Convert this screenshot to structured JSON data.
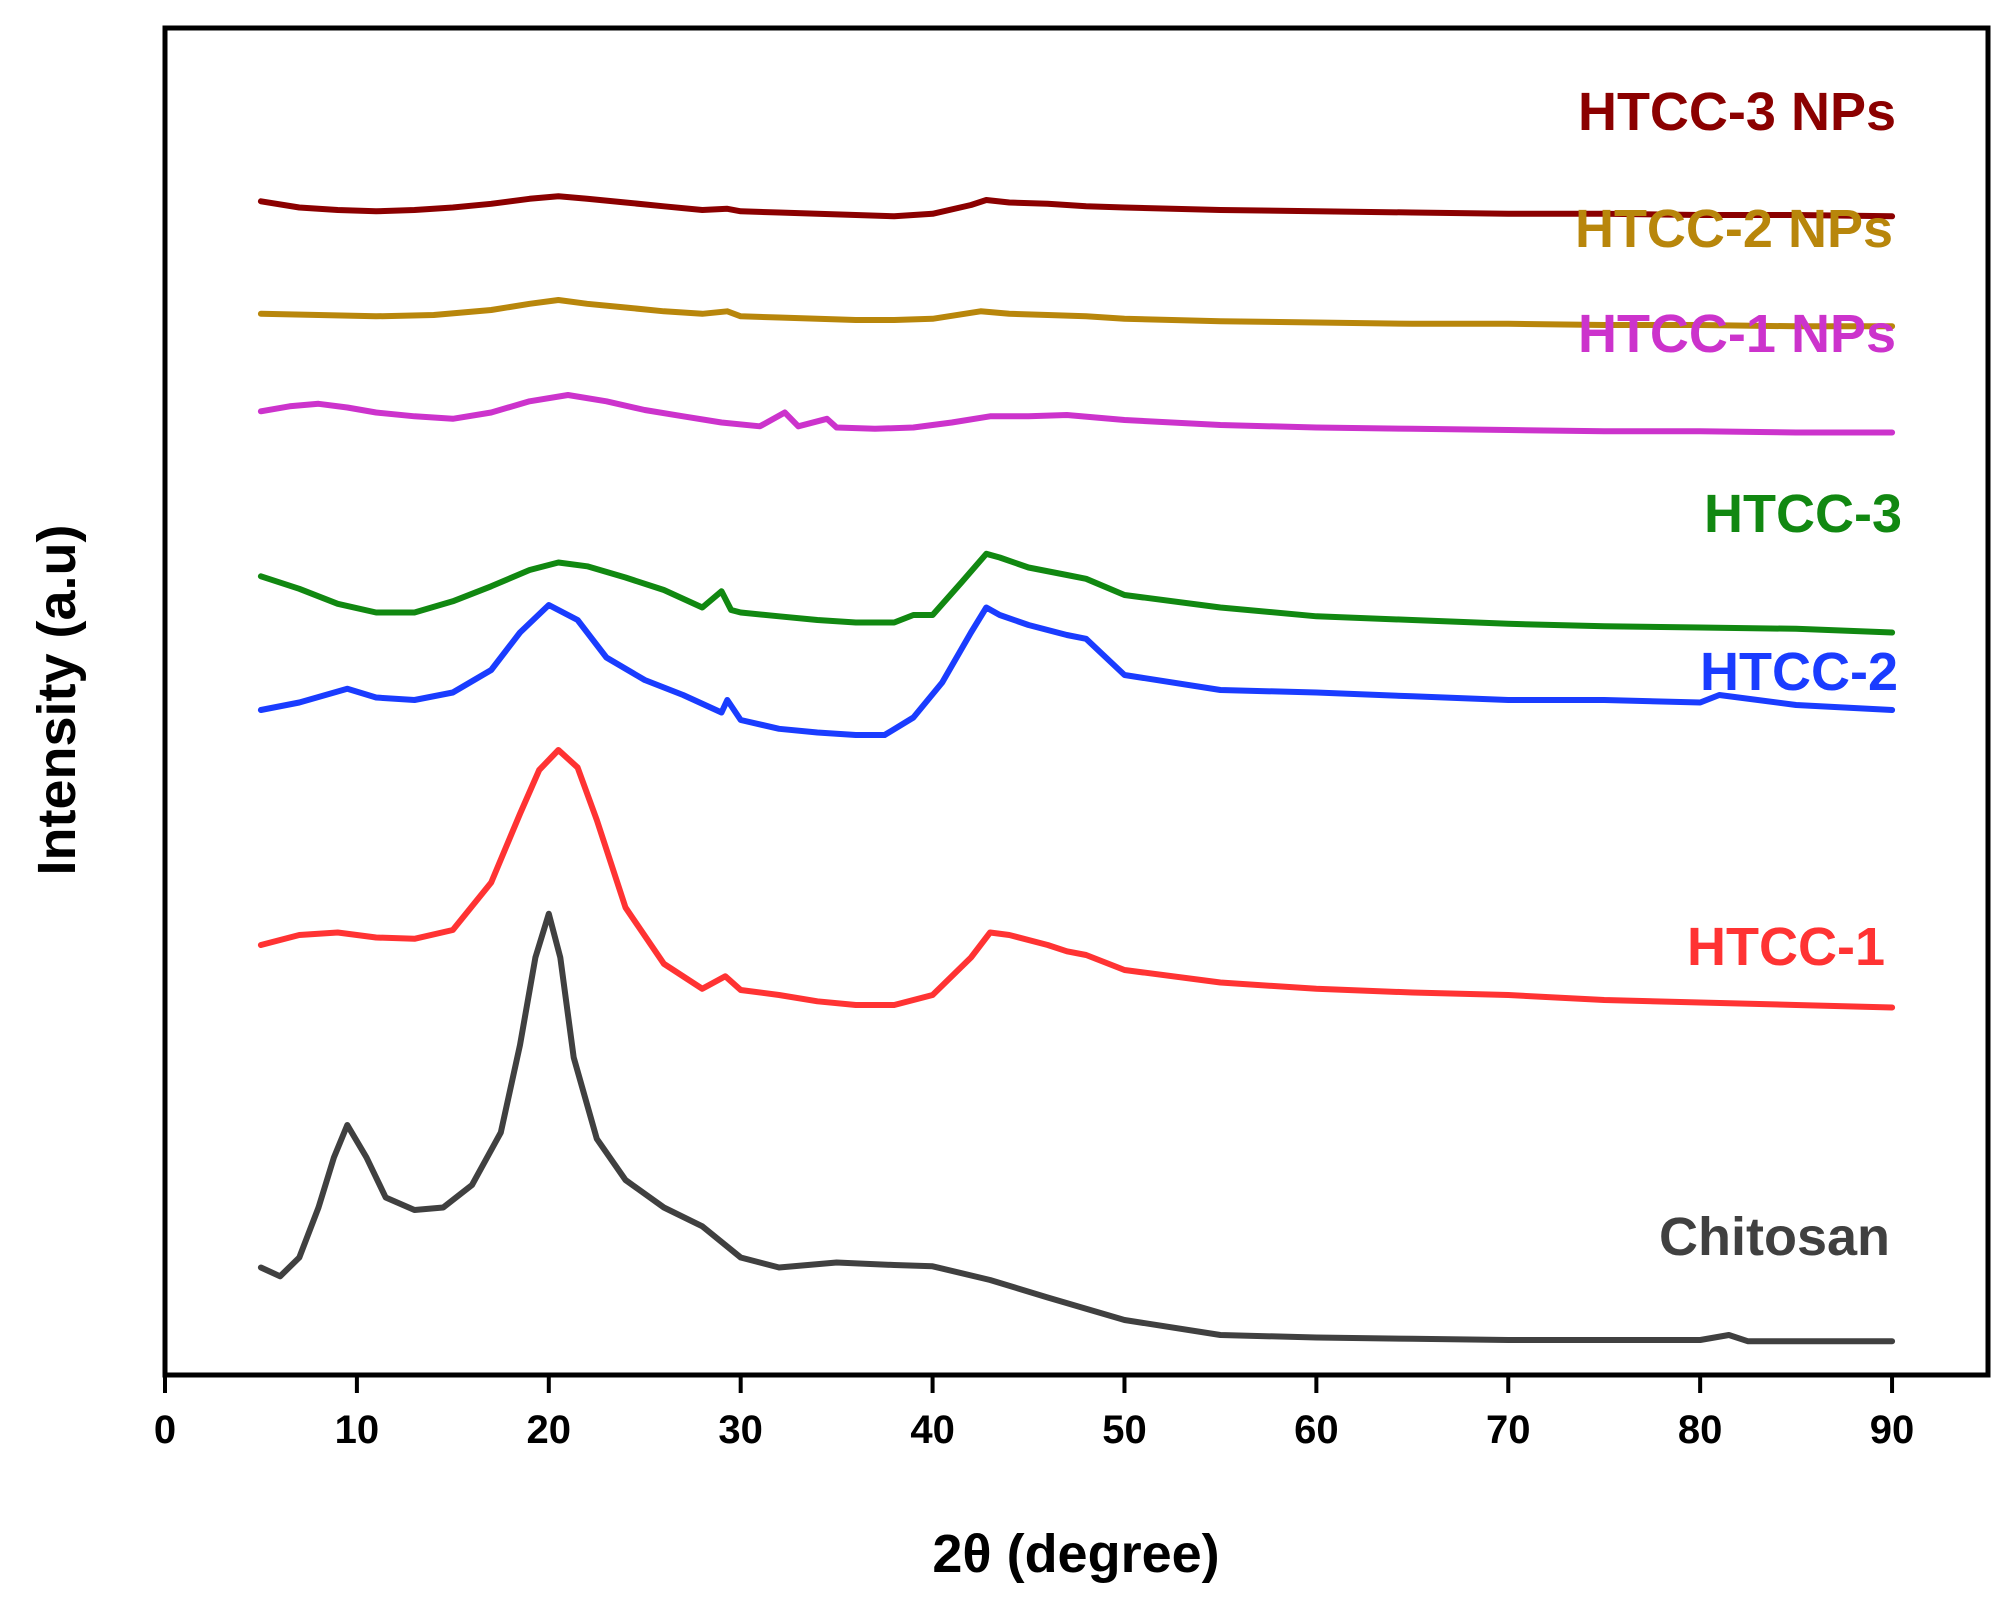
{
  "chart_data": {
    "type": "line",
    "title": "",
    "xlabel": "2θ (degree)",
    "ylabel": "Intensity (a.u)",
    "xlim": [
      0,
      95
    ],
    "xticks": [
      0,
      10,
      20,
      30,
      40,
      50,
      60,
      70,
      80,
      90
    ],
    "xtick_labels": [
      "0",
      "10",
      "20",
      "30",
      "40",
      "50",
      "60",
      "70",
      "80",
      "90"
    ],
    "yticks": [],
    "ylim": [
      0,
      100
    ],
    "grid": false,
    "legend": "inline labels at right end of each trace",
    "series": [
      {
        "name": "Chitosan",
        "color": "#404040",
        "x": [
          5,
          6,
          7,
          8,
          8.8,
          9.5,
          10.5,
          11.5,
          13,
          14.5,
          16,
          17.5,
          18.5,
          19.3,
          20,
          20.6,
          21.3,
          22.5,
          24,
          26,
          28,
          30,
          32,
          35,
          38,
          40,
          43,
          46,
          50,
          55,
          60,
          65,
          70,
          75,
          80,
          81.5,
          82.5,
          85,
          90
        ],
        "y": [
          8.2,
          7.5,
          9,
          13,
          17,
          19.6,
          17,
          13.8,
          12.8,
          13,
          14.8,
          19,
          26,
          33,
          36.5,
          33,
          25,
          18.5,
          15.2,
          13,
          11.5,
          9,
          8.2,
          8.6,
          8.4,
          8.3,
          7.2,
          5.8,
          4,
          2.8,
          2.6,
          2.5,
          2.4,
          2.4,
          2.4,
          2.8,
          2.3,
          2.3,
          2.3
        ]
      },
      {
        "name": "HTCC-1",
        "color": "#ff3333",
        "x": [
          5,
          7,
          9,
          11,
          13,
          15,
          17,
          18.5,
          19.5,
          20.5,
          21.5,
          22.5,
          24,
          26,
          28,
          29.2,
          30,
          32,
          34,
          36,
          38,
          40,
          42,
          43,
          44,
          46,
          47,
          48,
          50,
          55,
          60,
          65,
          70,
          75,
          80,
          85,
          90
        ],
        "y": [
          34,
          34.8,
          35,
          34.6,
          34.5,
          35.2,
          39,
          44.5,
          48,
          49.6,
          48.2,
          44,
          37,
          32.5,
          30.5,
          31.5,
          30.4,
          30,
          29.5,
          29.2,
          29.2,
          30,
          33,
          35,
          34.8,
          34,
          33.5,
          33.2,
          32,
          31,
          30.5,
          30.2,
          30,
          29.6,
          29.4,
          29.2,
          29
        ]
      },
      {
        "name": "HTCC-2",
        "color": "#1a3cff",
        "x": [
          5,
          7,
          9.5,
          11,
          13,
          15,
          17,
          18.5,
          20,
          21.5,
          23,
          25,
          27,
          29,
          29.3,
          30,
          32,
          34,
          36,
          37.5,
          39,
          40.5,
          42,
          42.8,
          43.5,
          45,
          47,
          48,
          50,
          55,
          60,
          65,
          70,
          75,
          80,
          81,
          85,
          90
        ],
        "y": [
          52.8,
          53.4,
          54.5,
          53.8,
          53.6,
          54.2,
          56,
          59,
          61.2,
          60,
          57,
          55.2,
          54,
          52.6,
          53.6,
          52,
          51.3,
          51,
          50.8,
          50.8,
          52.2,
          55,
          59,
          61,
          60.4,
          59.6,
          58.8,
          58.5,
          55.6,
          54.4,
          54.2,
          53.9,
          53.6,
          53.6,
          53.4,
          54,
          53.2,
          52.8
        ]
      },
      {
        "name": "HTCC-3",
        "color": "#118811",
        "x": [
          5,
          7,
          9,
          11,
          13,
          15,
          17,
          19,
          20.5,
          22,
          24,
          26,
          28,
          29,
          29.5,
          30,
          32,
          34,
          36,
          38,
          39,
          40,
          41.5,
          42.8,
          43.5,
          45,
          47,
          48,
          50,
          55,
          60,
          65,
          70,
          75,
          80,
          85,
          90
        ],
        "y": [
          63.5,
          62.5,
          61.3,
          60.6,
          60.6,
          61.5,
          62.7,
          64,
          64.6,
          64.3,
          63.4,
          62.4,
          61,
          62.3,
          60.8,
          60.6,
          60.3,
          60,
          59.8,
          59.8,
          60.4,
          60.4,
          63,
          65.3,
          65,
          64.2,
          63.6,
          63.3,
          62,
          61,
          60.3,
          60,
          59.7,
          59.5,
          59.4,
          59.3,
          59
        ]
      },
      {
        "name": "HTCC-1 NPs",
        "color": "#cc33cc",
        "x": [
          5,
          6.5,
          8,
          9.5,
          11,
          13,
          15,
          17,
          19,
          21,
          23,
          25,
          27,
          29,
          31,
          32.3,
          33,
          34.5,
          35,
          37,
          39,
          41,
          43,
          45,
          47,
          50,
          55,
          60,
          65,
          70,
          75,
          80,
          85,
          90
        ],
        "y": [
          76.7,
          77.1,
          77.3,
          77,
          76.6,
          76.3,
          76.1,
          76.6,
          77.5,
          78,
          77.5,
          76.8,
          76.3,
          75.8,
          75.5,
          76.6,
          75.5,
          76.1,
          75.4,
          75.3,
          75.4,
          75.8,
          76.3,
          76.3,
          76.4,
          76,
          75.6,
          75.4,
          75.3,
          75.2,
          75.1,
          75.1,
          75,
          75
        ]
      },
      {
        "name": "HTCC-2 NPs",
        "color": "#b8860b",
        "x": [
          5,
          8,
          11,
          14,
          17,
          19,
          20.5,
          22,
          24,
          26,
          28,
          29.3,
          30,
          32,
          34,
          36,
          38,
          40,
          42.5,
          44,
          46,
          48,
          50,
          55,
          60,
          65,
          70,
          75,
          80,
          85,
          90
        ],
        "y": [
          84.5,
          84.4,
          84.3,
          84.4,
          84.8,
          85.3,
          85.6,
          85.3,
          85,
          84.7,
          84.5,
          84.7,
          84.3,
          84.2,
          84.1,
          84,
          84,
          84.1,
          84.7,
          84.5,
          84.4,
          84.3,
          84.1,
          83.9,
          83.8,
          83.7,
          83.7,
          83.6,
          83.6,
          83.5,
          83.5
        ]
      },
      {
        "name": "HTCC-3 NPs",
        "color": "#8b0000",
        "x": [
          5,
          7,
          9,
          11,
          13,
          15,
          17,
          19,
          20.5,
          22,
          24,
          26,
          28,
          29.3,
          30,
          32,
          34,
          36,
          38,
          40,
          42,
          42.8,
          44,
          46,
          48,
          50,
          55,
          60,
          65,
          70,
          75,
          80,
          85,
          90
        ],
        "y": [
          93.5,
          93,
          92.8,
          92.7,
          92.8,
          93,
          93.3,
          93.7,
          93.9,
          93.7,
          93.4,
          93.1,
          92.8,
          92.9,
          92.7,
          92.6,
          92.5,
          92.4,
          92.3,
          92.5,
          93.2,
          93.6,
          93.4,
          93.3,
          93.1,
          93,
          92.8,
          92.7,
          92.6,
          92.5,
          92.5,
          92.4,
          92.4,
          92.3
        ]
      }
    ]
  }
}
